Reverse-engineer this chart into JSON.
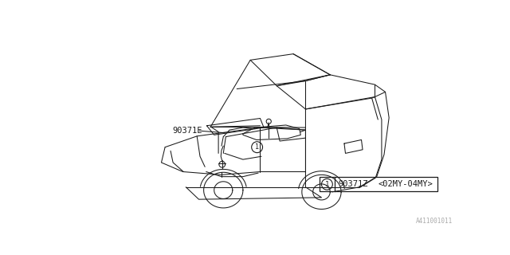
{
  "bg_color": "#ffffff",
  "lc": "#1a1a1a",
  "fig_w": 6.4,
  "fig_h": 3.2,
  "dpi": 100,
  "label_part": "90371E",
  "table_part_num": "90371Z",
  "table_model_year": "<02MY-04MY>",
  "table_callout": "1",
  "footer": "A411001011",
  "lw": 0.75
}
